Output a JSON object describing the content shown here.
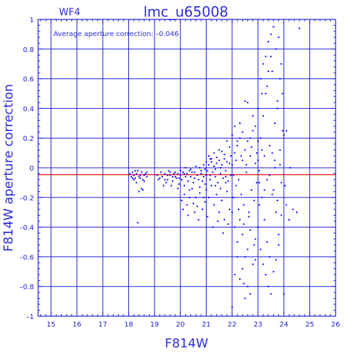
{
  "chart_data": {
    "type": "scatter",
    "chip_label": "WF4",
    "title": "lmc_u65008",
    "annotation": "Average aperture correction: –0.046",
    "xlabel": "F814W",
    "ylabel": "F814W aperture correction",
    "xlim": [
      14.5,
      26
    ],
    "ylim": [
      -1,
      1
    ],
    "x_ticks": [
      15,
      16,
      17,
      18,
      19,
      20,
      21,
      22,
      23,
      24,
      25,
      26
    ],
    "y_ticks": [
      -1,
      -0.8,
      -0.6,
      -0.4,
      -0.2,
      0,
      0.2,
      0.4,
      0.6,
      0.8,
      1
    ],
    "x_tick_labels": [
      "15",
      "16",
      "17",
      "18",
      "19",
      "20",
      "21",
      "22",
      "23",
      "24",
      "25",
      "26"
    ],
    "y_tick_labels": [
      "–1",
      "–0.8",
      "–0.6",
      "–0.4",
      "–0.2",
      "0",
      "0.2",
      "0.4",
      "0.6",
      "0.8",
      "1"
    ],
    "grid": true,
    "reference_line": {
      "y": -0.046,
      "color": "#e00000"
    },
    "colors": {
      "points": "#0000ff",
      "axes": "#1a1ad0",
      "text": "#2b2bd9"
    },
    "series": [
      {
        "points": [
          [
            18.05,
            -0.04
          ],
          [
            18.1,
            -0.06
          ],
          [
            18.15,
            -0.03
          ],
          [
            18.2,
            -0.05
          ],
          [
            18.25,
            -0.07
          ],
          [
            18.3,
            -0.04
          ],
          [
            18.35,
            -0.02
          ],
          [
            18.4,
            -0.06
          ],
          [
            18.45,
            -0.05
          ],
          [
            18.5,
            -0.03
          ],
          [
            18.55,
            -0.08
          ],
          [
            18.6,
            -0.05
          ],
          [
            18.65,
            -0.04
          ],
          [
            18.7,
            -0.06
          ],
          [
            18.2,
            -0.08
          ],
          [
            18.3,
            -0.1
          ],
          [
            18.4,
            -0.16
          ],
          [
            18.5,
            -0.14
          ],
          [
            18.25,
            -0.02
          ],
          [
            18.45,
            -0.07
          ],
          [
            18.6,
            -0.09
          ],
          [
            18.7,
            -0.03
          ],
          [
            18.35,
            -0.37
          ],
          [
            18.55,
            -0.15
          ],
          [
            18.15,
            -0.07
          ],
          [
            19.1,
            -0.05
          ],
          [
            19.2,
            -0.07
          ],
          [
            19.3,
            -0.06
          ],
          [
            19.4,
            -0.04
          ],
          [
            19.5,
            -0.08
          ],
          [
            19.6,
            -0.05
          ],
          [
            19.7,
            -0.09
          ],
          [
            19.8,
            -0.06
          ],
          [
            19.9,
            -0.04
          ],
          [
            19.25,
            -0.03
          ],
          [
            19.45,
            -0.1
          ],
          [
            19.65,
            -0.12
          ],
          [
            19.85,
            -0.07
          ],
          [
            19.95,
            -0.11
          ],
          [
            19.55,
            -0.02
          ],
          [
            19.75,
            -0.04
          ],
          [
            19.15,
            -0.08
          ],
          [
            19.35,
            -0.12
          ],
          [
            19.9,
            -0.14
          ],
          [
            19.6,
            -0.03
          ],
          [
            19.4,
            -0.08
          ],
          [
            19.8,
            -0.03
          ],
          [
            19.7,
            -0.06
          ],
          [
            19.5,
            -0.05
          ],
          [
            19.95,
            -0.07
          ],
          [
            20.0,
            -0.05
          ],
          [
            20.05,
            -0.08
          ],
          [
            20.1,
            -0.03
          ],
          [
            20.15,
            -0.12
          ],
          [
            20.2,
            -0.06
          ],
          [
            20.25,
            -0.04
          ],
          [
            20.3,
            -0.09
          ],
          [
            20.35,
            -0.15
          ],
          [
            20.4,
            -0.06
          ],
          [
            20.45,
            -0.03
          ],
          [
            20.5,
            -0.1
          ],
          [
            20.55,
            -0.07
          ],
          [
            20.6,
            -0.2
          ],
          [
            20.65,
            -0.05
          ],
          [
            20.7,
            -0.08
          ],
          [
            20.75,
            -0.13
          ],
          [
            20.8,
            -0.04
          ],
          [
            20.85,
            -0.09
          ],
          [
            20.9,
            -0.06
          ],
          [
            20.95,
            -0.11
          ],
          [
            20.05,
            -0.22
          ],
          [
            20.15,
            -0.18
          ],
          [
            20.25,
            -0.25
          ],
          [
            20.35,
            -0.2
          ],
          [
            20.45,
            -0.14
          ],
          [
            20.55,
            -0.3
          ],
          [
            20.65,
            -0.26
          ],
          [
            20.75,
            -0.17
          ],
          [
            20.85,
            -0.28
          ],
          [
            20.95,
            -0.23
          ],
          [
            20.1,
            -0.28
          ],
          [
            20.3,
            -0.32
          ],
          [
            20.5,
            -0.24
          ],
          [
            20.7,
            -0.35
          ],
          [
            20.9,
            -0.2
          ],
          [
            20.0,
            -0.02
          ],
          [
            20.2,
            0.0
          ],
          [
            20.4,
            -0.01
          ],
          [
            20.6,
            0.01
          ],
          [
            20.8,
            -0.02
          ],
          [
            20.15,
            -0.04
          ],
          [
            20.35,
            -0.02
          ],
          [
            20.55,
            -0.03
          ],
          [
            20.75,
            0.0
          ],
          [
            20.95,
            -0.01
          ],
          [
            21.0,
            -0.05
          ],
          [
            21.05,
            -0.02
          ],
          [
            21.1,
            0.02
          ],
          [
            21.15,
            -0.08
          ],
          [
            21.2,
            0.04
          ],
          [
            21.25,
            -0.03
          ],
          [
            21.3,
            0.01
          ],
          [
            21.35,
            -0.06
          ],
          [
            21.4,
            0.03
          ],
          [
            21.45,
            -0.1
          ],
          [
            21.5,
            0.05
          ],
          [
            21.55,
            -0.04
          ],
          [
            21.6,
            0.02
          ],
          [
            21.65,
            -0.07
          ],
          [
            21.7,
            0.06
          ],
          [
            21.75,
            -0.02
          ],
          [
            21.8,
            0.04
          ],
          [
            21.85,
            -0.09
          ],
          [
            21.9,
            0.03
          ],
          [
            21.95,
            -0.05
          ],
          [
            21.0,
            -0.15
          ],
          [
            21.1,
            -0.2
          ],
          [
            21.2,
            -0.12
          ],
          [
            21.3,
            -0.25
          ],
          [
            21.4,
            -0.18
          ],
          [
            21.5,
            -0.3
          ],
          [
            21.6,
            -0.22
          ],
          [
            21.7,
            -0.35
          ],
          [
            21.8,
            -0.16
          ],
          [
            21.9,
            -0.28
          ],
          [
            21.05,
            -0.33
          ],
          [
            21.25,
            -0.4
          ],
          [
            21.45,
            -0.36
          ],
          [
            21.65,
            -0.44
          ],
          [
            21.85,
            -0.38
          ],
          [
            21.1,
            0.08
          ],
          [
            21.3,
            0.1
          ],
          [
            21.5,
            0.12
          ],
          [
            21.7,
            0.09
          ],
          [
            21.9,
            0.14
          ],
          [
            21.2,
            0.06
          ],
          [
            21.4,
            0.07
          ],
          [
            21.6,
            0.11
          ],
          [
            21.8,
            0.18
          ],
          [
            21.95,
            0.08
          ],
          [
            20.9,
            0.02
          ],
          [
            21.0,
            0.04
          ],
          [
            21.15,
            0.06
          ],
          [
            21.35,
            -0.01
          ],
          [
            21.55,
            0.0
          ],
          [
            21.75,
            -0.1
          ],
          [
            21.15,
            -0.05
          ],
          [
            21.35,
            -0.12
          ],
          [
            21.55,
            -0.14
          ],
          [
            21.75,
            -0.06
          ],
          [
            22.0,
            0.02
          ],
          [
            22.05,
            -0.05
          ],
          [
            22.1,
            0.1
          ],
          [
            22.15,
            -0.12
          ],
          [
            22.2,
            0.15
          ],
          [
            22.25,
            -0.08
          ],
          [
            22.3,
            0.2
          ],
          [
            22.35,
            -0.18
          ],
          [
            22.4,
            0.05
          ],
          [
            22.45,
            -0.25
          ],
          [
            22.5,
            0.12
          ],
          [
            22.55,
            -0.03
          ],
          [
            22.6,
            0.18
          ],
          [
            22.65,
            -0.3
          ],
          [
            22.7,
            0.08
          ],
          [
            22.75,
            -0.15
          ],
          [
            22.8,
            0.25
          ],
          [
            22.85,
            -0.22
          ],
          [
            22.9,
            0.03
          ],
          [
            22.95,
            -0.1
          ],
          [
            22.0,
            -0.3
          ],
          [
            22.1,
            -0.4
          ],
          [
            22.2,
            -0.5
          ],
          [
            22.3,
            -0.35
          ],
          [
            22.4,
            -0.45
          ],
          [
            22.5,
            -0.6
          ],
          [
            22.6,
            -0.55
          ],
          [
            22.7,
            -0.42
          ],
          [
            22.8,
            -0.65
          ],
          [
            22.9,
            -0.48
          ],
          [
            22.05,
            -0.2
          ],
          [
            22.25,
            -0.28
          ],
          [
            22.45,
            -0.38
          ],
          [
            22.65,
            -0.33
          ],
          [
            22.85,
            -0.52
          ],
          [
            22.0,
            0.22
          ],
          [
            22.1,
            0.28
          ],
          [
            22.2,
            0.18
          ],
          [
            22.3,
            0.3
          ],
          [
            22.4,
            0.24
          ],
          [
            22.5,
            0.45
          ],
          [
            22.6,
            0.44
          ],
          [
            22.7,
            0.2
          ],
          [
            22.8,
            0.35
          ],
          [
            22.9,
            0.28
          ],
          [
            22.15,
            0.05
          ],
          [
            22.35,
            0.08
          ],
          [
            22.55,
            0.02
          ],
          [
            22.75,
            0.14
          ],
          [
            22.95,
            0.1
          ],
          [
            22.1,
            -0.72
          ],
          [
            22.3,
            -0.75
          ],
          [
            22.4,
            -0.68
          ],
          [
            22.6,
            -0.8
          ],
          [
            22.7,
            -0.85
          ],
          [
            22.9,
            -0.62
          ],
          [
            22.0,
            -0.94
          ],
          [
            22.5,
            -0.88
          ],
          [
            22.2,
            -0.6
          ],
          [
            22.45,
            -0.78
          ],
          [
            23.0,
            0.05
          ],
          [
            23.05,
            -0.1
          ],
          [
            23.1,
            0.2
          ],
          [
            23.15,
            -0.2
          ],
          [
            23.2,
            0.35
          ],
          [
            23.25,
            -0.35
          ],
          [
            23.3,
            0.5
          ],
          [
            23.35,
            -0.5
          ],
          [
            23.4,
            0.65
          ],
          [
            23.45,
            -0.6
          ],
          [
            23.5,
            0.75
          ],
          [
            23.55,
            0.1
          ],
          [
            23.6,
            -0.15
          ],
          [
            23.65,
            0.3
          ],
          [
            23.7,
            -0.3
          ],
          [
            23.75,
            0.45
          ],
          [
            23.8,
            -0.45
          ],
          [
            23.85,
            0.6
          ],
          [
            23.9,
            -0.1
          ],
          [
            23.95,
            0.25
          ],
          [
            23.0,
            -0.4
          ],
          [
            23.1,
            -0.55
          ],
          [
            23.2,
            -0.65
          ],
          [
            23.3,
            -0.72
          ],
          [
            23.4,
            -0.8
          ],
          [
            23.5,
            -0.85
          ],
          [
            23.6,
            -0.7
          ],
          [
            23.7,
            -0.62
          ],
          [
            23.8,
            -0.52
          ],
          [
            23.9,
            -0.32
          ],
          [
            23.05,
            -0.25
          ],
          [
            23.25,
            -0.15
          ],
          [
            23.45,
            -0.05
          ],
          [
            23.65,
            0.0
          ],
          [
            23.85,
            0.02
          ],
          [
            23.0,
            0.4
          ],
          [
            23.1,
            0.6
          ],
          [
            23.2,
            0.7
          ],
          [
            23.3,
            0.75
          ],
          [
            23.4,
            0.85
          ],
          [
            23.5,
            0.9
          ],
          [
            23.6,
            0.95
          ],
          [
            23.7,
            0.8
          ],
          [
            23.8,
            0.88
          ],
          [
            23.9,
            0.7
          ],
          [
            23.15,
            0.5
          ],
          [
            23.35,
            0.55
          ],
          [
            23.55,
            0.65
          ],
          [
            23.75,
            0.4
          ],
          [
            23.95,
            0.5
          ],
          [
            24.0,
            0.22
          ],
          [
            24.05,
            -0.12
          ],
          [
            24.1,
            -0.25
          ],
          [
            24.2,
            -0.35
          ],
          [
            24.25,
            0.0
          ],
          [
            24.35,
            -0.28
          ],
          [
            24.5,
            -0.3
          ],
          [
            24.6,
            0.94
          ],
          [
            24.0,
            -0.85
          ],
          [
            24.1,
            0.25
          ],
          [
            23.0,
            0.18
          ],
          [
            23.05,
            -0.02
          ],
          [
            23.15,
            0.12
          ],
          [
            23.25,
            0.08
          ],
          [
            23.35,
            -0.08
          ],
          [
            23.45,
            0.15
          ],
          [
            23.55,
            -0.18
          ],
          [
            23.65,
            0.05
          ],
          [
            23.75,
            -0.22
          ],
          [
            23.85,
            0.12
          ]
        ]
      }
    ]
  }
}
